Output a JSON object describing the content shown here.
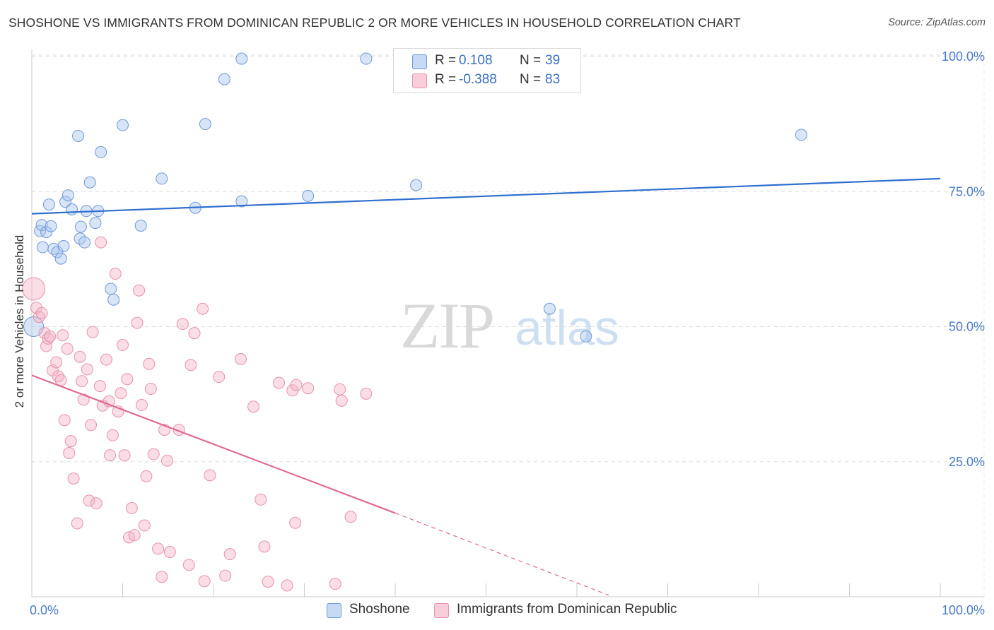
{
  "header": {
    "title": "SHOSHONE VS IMMIGRANTS FROM DOMINICAN REPUBLIC 2 OR MORE VEHICLES IN HOUSEHOLD CORRELATION CHART",
    "source": "Source: ZipAtlas.com"
  },
  "watermark": {
    "zip": "ZIP",
    "atlas": "atlas"
  },
  "legend": {
    "rows": [
      {
        "r_label": "R =",
        "r_value": "0.108",
        "n_label": "N =",
        "n_value": "39",
        "color": "#a9c6ee"
      },
      {
        "r_label": "R =",
        "r_value": "-0.388",
        "n_label": "N =",
        "n_value": "83",
        "color": "#f5b4c6"
      }
    ]
  },
  "bottom_legend": {
    "items": [
      {
        "label": "Shoshone",
        "color": "#a9c6ee"
      },
      {
        "label": "Immigrants from Dominican Republic",
        "color": "#f5b4c6"
      }
    ]
  },
  "chart_data": {
    "type": "scatter",
    "title": "SHOSHONE VS IMMIGRANTS FROM DOMINICAN REPUBLIC 2 OR MORE VEHICLES IN HOUSEHOLD CORRELATION CHART",
    "xlabel": "",
    "ylabel": "2 or more Vehicles in Household",
    "xlim": [
      0,
      100
    ],
    "ylim": [
      0,
      100
    ],
    "x_tick_labels": [
      "0.0%",
      "100.0%"
    ],
    "y_tick_labels": [
      "25.0%",
      "50.0%",
      "75.0%",
      "100.0%"
    ],
    "y_ticks": [
      25,
      50,
      75,
      100
    ],
    "series": [
      {
        "name": "Shoshone",
        "color": "#a9c6ee",
        "stroke": "#6f9ad6",
        "trend": {
          "x0": 0,
          "y0": 70.9,
          "x1": 100,
          "y1": 77.4,
          "dashed_from": null,
          "line_color": "#2f6fcf"
        },
        "points": [
          [
            0.2,
            50.0,
            14
          ],
          [
            0.9,
            67.7,
            8
          ],
          [
            1.1,
            68.8,
            8
          ],
          [
            1.2,
            64.7,
            8
          ],
          [
            1.6,
            67.5,
            8
          ],
          [
            1.9,
            72.6,
            8
          ],
          [
            2.1,
            68.6,
            8
          ],
          [
            2.4,
            64.4,
            8
          ],
          [
            2.8,
            63.8,
            8
          ],
          [
            3.2,
            62.6,
            8
          ],
          [
            3.5,
            64.9,
            8
          ],
          [
            3.7,
            73.1,
            8
          ],
          [
            4.0,
            74.3,
            8
          ],
          [
            4.4,
            71.7,
            8
          ],
          [
            5.1,
            85.3,
            8
          ],
          [
            5.3,
            66.3,
            8
          ],
          [
            5.4,
            68.5,
            8
          ],
          [
            5.8,
            65.6,
            8
          ],
          [
            6.0,
            71.4,
            8
          ],
          [
            6.4,
            76.7,
            8
          ],
          [
            7.0,
            69.2,
            8
          ],
          [
            7.3,
            71.4,
            8
          ],
          [
            7.6,
            82.3,
            8
          ],
          [
            8.7,
            57.0,
            8
          ],
          [
            9.0,
            55.0,
            8
          ],
          [
            10.0,
            87.3,
            8
          ],
          [
            12.0,
            68.7,
            8
          ],
          [
            14.3,
            77.4,
            8
          ],
          [
            18.0,
            72.0,
            8
          ],
          [
            19.1,
            87.5,
            8
          ],
          [
            21.2,
            95.8,
            8
          ],
          [
            23.1,
            99.6,
            8
          ],
          [
            23.1,
            73.2,
            8
          ],
          [
            30.4,
            74.2,
            8
          ],
          [
            36.8,
            99.6,
            8
          ],
          [
            42.3,
            76.2,
            8
          ],
          [
            57.0,
            53.3,
            8
          ],
          [
            61.0,
            48.2,
            8
          ],
          [
            84.7,
            85.5,
            8
          ]
        ]
      },
      {
        "name": "Immigrants from Dominican Republic",
        "color": "#f5b4c6",
        "stroke": "#e792ac",
        "trend": {
          "x0": 0,
          "y0": 41.0,
          "x1": 40.0,
          "y1": 15.5,
          "dashed_from": 40.0,
          "dashed_to_x": 63.5,
          "dashed_to_y": 0.3,
          "line_color": "#e06a95"
        },
        "points": [
          [
            0.2,
            57.0,
            16
          ],
          [
            0.5,
            53.5,
            8
          ],
          [
            0.8,
            51.8,
            8
          ],
          [
            1.1,
            52.5,
            8
          ],
          [
            1.4,
            48.8,
            8
          ],
          [
            1.6,
            46.4,
            8
          ],
          [
            1.8,
            47.8,
            8
          ],
          [
            2.0,
            48.2,
            8
          ],
          [
            2.3,
            41.9,
            8
          ],
          [
            2.7,
            43.4,
            8
          ],
          [
            2.9,
            40.8,
            8
          ],
          [
            3.2,
            40.1,
            8
          ],
          [
            3.4,
            48.4,
            8
          ],
          [
            3.6,
            32.7,
            8
          ],
          [
            3.9,
            45.9,
            8
          ],
          [
            4.1,
            26.6,
            8
          ],
          [
            4.3,
            28.8,
            8
          ],
          [
            4.6,
            21.9,
            8
          ],
          [
            5.0,
            13.6,
            8
          ],
          [
            5.3,
            44.4,
            8
          ],
          [
            5.5,
            39.9,
            8
          ],
          [
            5.7,
            36.5,
            8
          ],
          [
            6.1,
            42.1,
            8
          ],
          [
            6.3,
            17.8,
            8
          ],
          [
            6.5,
            31.8,
            8
          ],
          [
            6.7,
            49.0,
            8
          ],
          [
            7.1,
            17.3,
            8
          ],
          [
            7.5,
            39.0,
            8
          ],
          [
            7.6,
            65.6,
            8
          ],
          [
            7.8,
            35.4,
            8
          ],
          [
            8.2,
            43.9,
            8
          ],
          [
            8.5,
            36.2,
            8
          ],
          [
            8.6,
            26.2,
            8
          ],
          [
            8.9,
            29.9,
            8
          ],
          [
            9.2,
            59.8,
            8
          ],
          [
            9.5,
            34.3,
            8
          ],
          [
            9.8,
            37.7,
            8
          ],
          [
            10.0,
            46.6,
            8
          ],
          [
            10.2,
            26.2,
            8
          ],
          [
            10.5,
            40.3,
            8
          ],
          [
            10.7,
            11.0,
            8
          ],
          [
            11.0,
            16.4,
            8
          ],
          [
            11.3,
            11.4,
            8
          ],
          [
            11.6,
            50.7,
            8
          ],
          [
            11.8,
            56.7,
            8
          ],
          [
            12.1,
            35.5,
            8
          ],
          [
            12.4,
            13.2,
            8
          ],
          [
            12.6,
            22.3,
            8
          ],
          [
            12.9,
            43.1,
            8
          ],
          [
            13.1,
            38.5,
            8
          ],
          [
            13.4,
            26.4,
            8
          ],
          [
            13.9,
            8.9,
            8
          ],
          [
            14.3,
            3.7,
            8
          ],
          [
            14.6,
            30.9,
            8
          ],
          [
            14.9,
            25.2,
            8
          ],
          [
            15.2,
            8.3,
            8
          ],
          [
            16.2,
            30.9,
            8
          ],
          [
            16.6,
            50.5,
            8
          ],
          [
            17.3,
            5.9,
            8
          ],
          [
            17.5,
            42.9,
            8
          ],
          [
            17.9,
            48.8,
            8
          ],
          [
            18.8,
            53.3,
            8
          ],
          [
            19.0,
            2.9,
            8
          ],
          [
            19.6,
            22.5,
            8
          ],
          [
            20.6,
            40.7,
            8
          ],
          [
            21.3,
            3.9,
            8
          ],
          [
            21.8,
            7.9,
            8
          ],
          [
            23.0,
            44.0,
            8
          ],
          [
            24.4,
            35.2,
            8
          ],
          [
            25.2,
            18.0,
            8
          ],
          [
            25.6,
            9.3,
            8
          ],
          [
            26.0,
            2.8,
            8
          ],
          [
            27.2,
            39.6,
            8
          ],
          [
            28.1,
            2.1,
            8
          ],
          [
            28.7,
            38.2,
            8
          ],
          [
            29.0,
            13.7,
            8
          ],
          [
            29.1,
            39.2,
            8
          ],
          [
            30.4,
            38.6,
            8
          ],
          [
            33.4,
            2.4,
            8
          ],
          [
            33.9,
            38.4,
            8
          ],
          [
            34.1,
            36.3,
            8
          ],
          [
            35.1,
            14.8,
            8
          ],
          [
            36.8,
            37.6,
            8
          ]
        ]
      }
    ]
  }
}
